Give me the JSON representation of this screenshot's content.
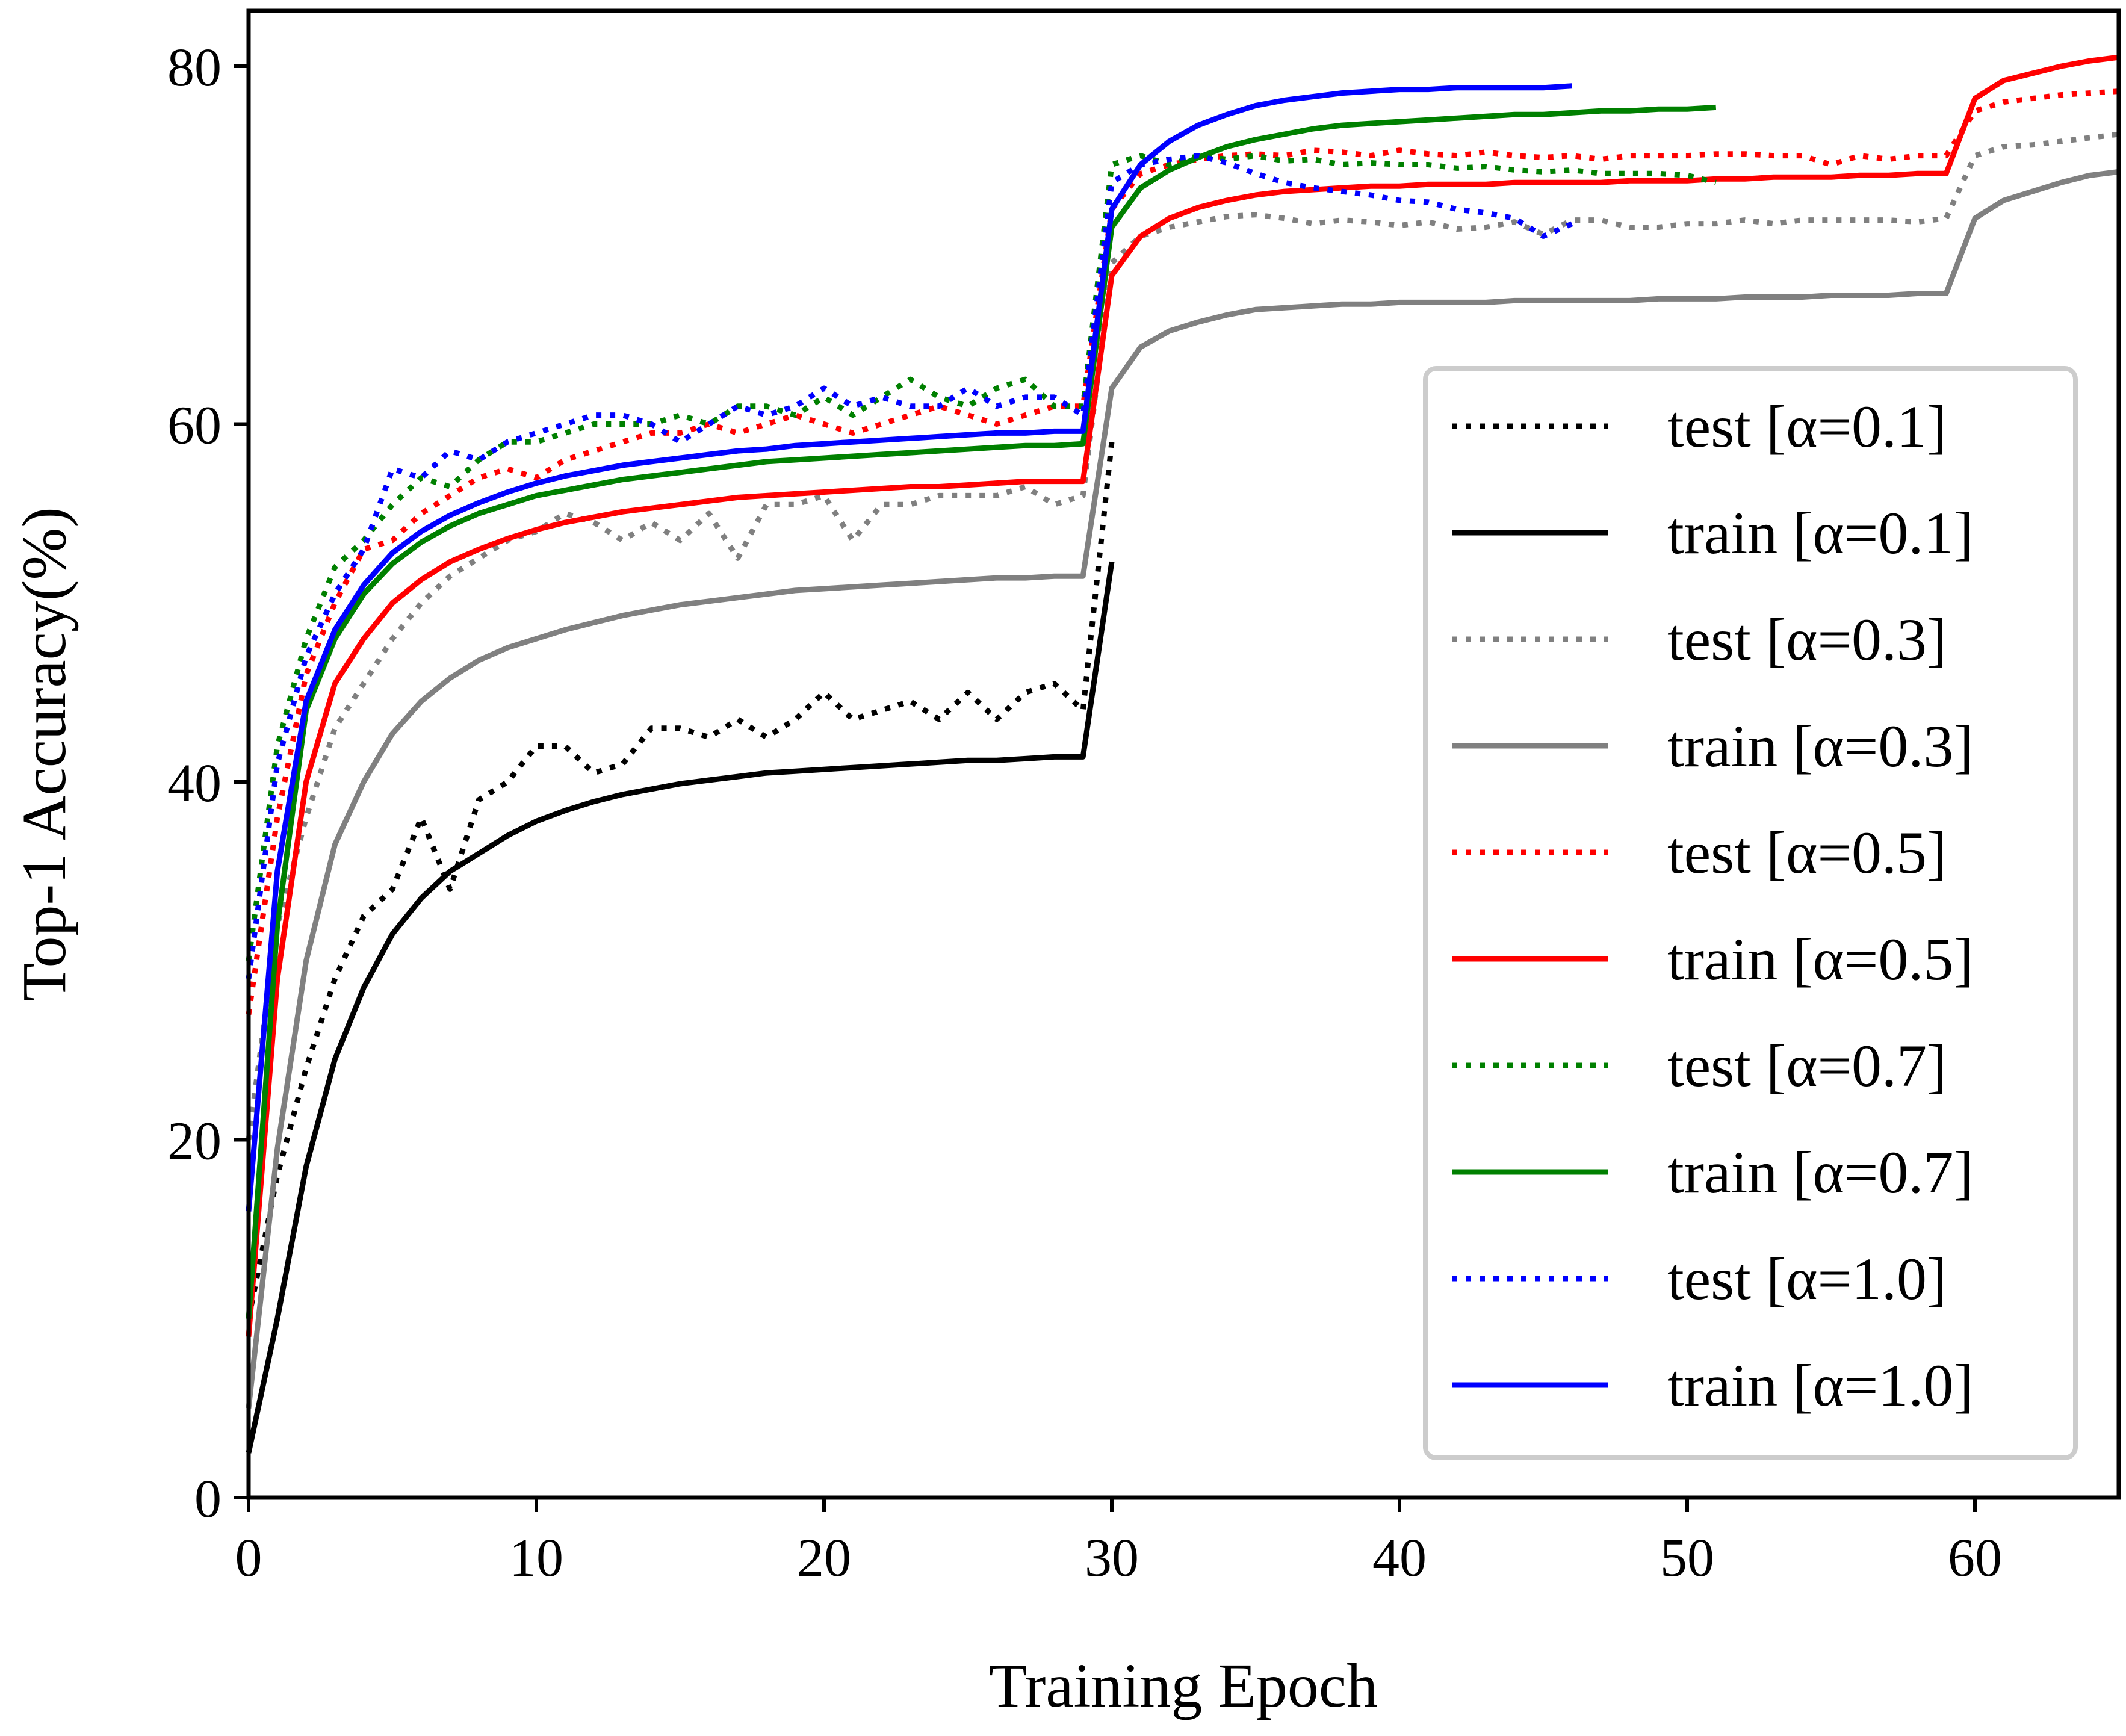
{
  "chart_data": {
    "type": "line",
    "title": "",
    "xlabel": "Training Epoch",
    "ylabel": "Top-1 Accuracy(%)",
    "xlim": [
      0,
      65
    ],
    "ylim": [
      0,
      83
    ],
    "xticks": [
      0,
      10,
      20,
      30,
      40,
      50,
      60
    ],
    "yticks": [
      0,
      20,
      40,
      60,
      80
    ],
    "grid": false,
    "legend_position": "right",
    "series": [
      {
        "name": "test [α=0.1]",
        "style": "dotted",
        "color": "#000000",
        "x": [
          0,
          1,
          2,
          3,
          4,
          5,
          6,
          7,
          8,
          9,
          10,
          11,
          12,
          13,
          14,
          15,
          16,
          17,
          18,
          19,
          20,
          21,
          22,
          23,
          24,
          25,
          26,
          27,
          28,
          29,
          30
        ],
        "y": [
          10,
          18,
          24,
          29,
          32.5,
          34,
          38,
          34,
          39,
          40,
          42,
          42,
          40.5,
          41,
          43,
          43,
          42.5,
          43.5,
          42.5,
          43.5,
          45,
          43.5,
          44,
          44.5,
          43.5,
          45,
          43.5,
          45,
          45.5,
          44,
          59
        ]
      },
      {
        "name": "train [α=0.1]",
        "style": "solid",
        "color": "#000000",
        "x": [
          0,
          1,
          2,
          3,
          4,
          5,
          6,
          7,
          8,
          9,
          10,
          11,
          12,
          13,
          14,
          15,
          16,
          17,
          18,
          19,
          20,
          21,
          22,
          23,
          24,
          25,
          26,
          27,
          28,
          29,
          30
        ],
        "y": [
          2.5,
          10,
          18.5,
          24.5,
          28.5,
          31.5,
          33.5,
          35,
          36,
          37,
          37.8,
          38.4,
          38.9,
          39.3,
          39.6,
          39.9,
          40.1,
          40.3,
          40.5,
          40.6,
          40.7,
          40.8,
          40.9,
          41,
          41.1,
          41.2,
          41.2,
          41.3,
          41.4,
          41.4,
          52.3
        ]
      },
      {
        "name": "test [α=0.3]",
        "style": "dotted",
        "color": "#808080",
        "x": [
          0,
          1,
          2,
          3,
          4,
          5,
          6,
          7,
          8,
          9,
          10,
          11,
          12,
          13,
          14,
          15,
          16,
          17,
          18,
          19,
          20,
          21,
          22,
          23,
          24,
          25,
          26,
          27,
          28,
          29,
          30,
          31,
          32,
          33,
          34,
          35,
          36,
          37,
          38,
          39,
          40,
          41,
          42,
          43,
          44,
          45,
          46,
          47,
          48,
          49,
          50,
          51,
          52,
          53,
          54,
          55,
          56,
          57,
          58,
          59,
          60,
          61,
          62,
          63,
          64,
          65
        ],
        "y": [
          20,
          32,
          38,
          43,
          45.5,
          48,
          50,
          51.5,
          52.5,
          53.5,
          54,
          55,
          54.5,
          53.5,
          54.5,
          53.5,
          55,
          52.5,
          55.5,
          55.5,
          56,
          53.5,
          55.5,
          55.5,
          56,
          56,
          56,
          56.5,
          55.5,
          56,
          69,
          70.5,
          71,
          71.3,
          71.6,
          71.7,
          71.5,
          71.2,
          71.4,
          71.3,
          71.1,
          71.3,
          70.9,
          71,
          71.3,
          70.6,
          71.4,
          71.4,
          71,
          71,
          71.2,
          71.2,
          71.4,
          71.2,
          71.4,
          71.4,
          71.4,
          71.4,
          71.3,
          71.5,
          75,
          75.5,
          75.6,
          75.8,
          76,
          76.2
        ]
      },
      {
        "name": "train [α=0.3]",
        "style": "solid",
        "color": "#808080",
        "x": [
          0,
          1,
          2,
          3,
          4,
          5,
          6,
          7,
          8,
          9,
          10,
          11,
          12,
          13,
          14,
          15,
          16,
          17,
          18,
          19,
          20,
          21,
          22,
          23,
          24,
          25,
          26,
          27,
          28,
          29,
          30,
          31,
          32,
          33,
          34,
          35,
          36,
          37,
          38,
          39,
          40,
          41,
          42,
          43,
          44,
          45,
          46,
          47,
          48,
          49,
          50,
          51,
          52,
          53,
          54,
          55,
          56,
          57,
          58,
          59,
          60,
          61,
          62,
          63,
          64,
          65
        ],
        "y": [
          5,
          19.5,
          30,
          36.5,
          40,
          42.7,
          44.5,
          45.8,
          46.8,
          47.5,
          48,
          48.5,
          48.9,
          49.3,
          49.6,
          49.9,
          50.1,
          50.3,
          50.5,
          50.7,
          50.8,
          50.9,
          51,
          51.1,
          51.2,
          51.3,
          51.4,
          51.4,
          51.5,
          51.5,
          62,
          64.3,
          65.2,
          65.7,
          66.1,
          66.4,
          66.5,
          66.6,
          66.7,
          66.7,
          66.8,
          66.8,
          66.8,
          66.8,
          66.9,
          66.9,
          66.9,
          66.9,
          66.9,
          67,
          67,
          67,
          67.1,
          67.1,
          67.1,
          67.2,
          67.2,
          67.2,
          67.3,
          67.3,
          71.5,
          72.5,
          73,
          73.5,
          73.9,
          74.1
        ]
      },
      {
        "name": "test [α=0.5]",
        "style": "dotted",
        "color": "#ff0000",
        "x": [
          0,
          1,
          2,
          3,
          4,
          5,
          6,
          7,
          8,
          9,
          10,
          11,
          12,
          13,
          14,
          15,
          16,
          17,
          18,
          19,
          20,
          21,
          22,
          23,
          24,
          25,
          26,
          27,
          28,
          29,
          30,
          31,
          32,
          33,
          34,
          35,
          36,
          37,
          38,
          39,
          40,
          41,
          42,
          43,
          44,
          45,
          46,
          47,
          48,
          49,
          50,
          51,
          52,
          53,
          54,
          55,
          56,
          57,
          58,
          59,
          60,
          61,
          62,
          63,
          64,
          65
        ],
        "y": [
          27,
          38,
          46,
          50,
          53,
          53.5,
          55,
          56,
          57,
          57.5,
          57,
          58,
          58.5,
          59,
          59.5,
          59.5,
          60,
          59.5,
          60,
          60.5,
          60,
          59.5,
          60,
          60.5,
          61,
          60.5,
          60,
          60.5,
          61,
          61,
          72,
          74,
          74.5,
          74.8,
          75,
          75.1,
          75,
          75.3,
          75.2,
          75,
          75.3,
          75.1,
          75,
          75.2,
          75,
          74.9,
          75,
          74.8,
          75,
          75,
          75,
          75.1,
          75.1,
          75,
          75,
          74.5,
          75,
          74.8,
          75,
          75,
          77.5,
          78,
          78.2,
          78.4,
          78.5,
          78.6
        ]
      },
      {
        "name": "train [α=0.5]",
        "style": "solid",
        "color": "#ff0000",
        "x": [
          0,
          1,
          2,
          3,
          4,
          5,
          6,
          7,
          8,
          9,
          10,
          11,
          12,
          13,
          14,
          15,
          16,
          17,
          18,
          19,
          20,
          21,
          22,
          23,
          24,
          25,
          26,
          27,
          28,
          29,
          30,
          31,
          32,
          33,
          34,
          35,
          36,
          37,
          38,
          39,
          40,
          41,
          42,
          43,
          44,
          45,
          46,
          47,
          48,
          49,
          50,
          51,
          52,
          53,
          54,
          55,
          56,
          57,
          58,
          59,
          60,
          61,
          62,
          63,
          64,
          65
        ],
        "y": [
          9,
          29,
          40,
          45.5,
          48,
          50,
          51.3,
          52.3,
          53,
          53.6,
          54.1,
          54.5,
          54.8,
          55.1,
          55.3,
          55.5,
          55.7,
          55.9,
          56,
          56.1,
          56.2,
          56.3,
          56.4,
          56.5,
          56.5,
          56.6,
          56.7,
          56.8,
          56.8,
          56.8,
          68.3,
          70.5,
          71.5,
          72.1,
          72.5,
          72.8,
          73,
          73.1,
          73.2,
          73.3,
          73.3,
          73.4,
          73.4,
          73.4,
          73.5,
          73.5,
          73.5,
          73.5,
          73.6,
          73.6,
          73.6,
          73.7,
          73.7,
          73.8,
          73.8,
          73.8,
          73.9,
          73.9,
          74,
          74,
          78.2,
          79.2,
          79.6,
          80,
          80.3,
          80.5
        ]
      },
      {
        "name": "test [α=0.7]",
        "style": "dotted",
        "color": "#008000",
        "x": [
          0,
          1,
          2,
          3,
          4,
          5,
          6,
          7,
          8,
          9,
          10,
          11,
          12,
          13,
          14,
          15,
          16,
          17,
          18,
          19,
          20,
          21,
          22,
          23,
          24,
          25,
          26,
          27,
          28,
          29,
          30,
          31,
          32,
          33,
          34,
          35,
          36,
          37,
          38,
          39,
          40,
          41,
          42,
          43,
          44,
          45,
          46,
          47,
          48,
          49,
          50,
          51
        ],
        "y": [
          30,
          42,
          48,
          52,
          53.5,
          55.5,
          57,
          56.5,
          58,
          59,
          59,
          59.5,
          60,
          60,
          60,
          60.5,
          60,
          61,
          61,
          60.5,
          61.5,
          60.5,
          61.5,
          62.5,
          61.5,
          61,
          62,
          62.5,
          61,
          61,
          74.5,
          75,
          74.5,
          75,
          74.8,
          75,
          74.7,
          74.8,
          74.5,
          74.6,
          74.5,
          74.5,
          74.3,
          74.4,
          74.2,
          74.1,
          74.2,
          74,
          74,
          74,
          73.9,
          73.5
        ]
      },
      {
        "name": "train [α=0.7]",
        "style": "solid",
        "color": "#008000",
        "x": [
          0,
          1,
          2,
          3,
          4,
          5,
          6,
          7,
          8,
          9,
          10,
          11,
          12,
          13,
          14,
          15,
          16,
          17,
          18,
          19,
          20,
          21,
          22,
          23,
          24,
          25,
          26,
          27,
          28,
          29,
          30,
          31,
          32,
          33,
          34,
          35,
          36,
          37,
          38,
          39,
          40,
          41,
          42,
          43,
          44,
          45,
          46,
          47,
          48,
          49,
          50,
          51
        ],
        "y": [
          10,
          32,
          44,
          48,
          50.5,
          52.2,
          53.4,
          54.3,
          55,
          55.5,
          56,
          56.3,
          56.6,
          56.9,
          57.1,
          57.3,
          57.5,
          57.7,
          57.9,
          58,
          58.1,
          58.2,
          58.3,
          58.4,
          58.5,
          58.6,
          58.7,
          58.8,
          58.8,
          58.9,
          71,
          73.2,
          74.2,
          74.9,
          75.5,
          75.9,
          76.2,
          76.5,
          76.7,
          76.8,
          76.9,
          77,
          77.1,
          77.2,
          77.3,
          77.3,
          77.4,
          77.5,
          77.5,
          77.6,
          77.6,
          77.7
        ]
      },
      {
        "name": "test [α=1.0]",
        "style": "dotted",
        "color": "#0000ff",
        "x": [
          0,
          1,
          2,
          3,
          4,
          5,
          6,
          7,
          8,
          9,
          10,
          11,
          12,
          13,
          14,
          15,
          16,
          17,
          18,
          19,
          20,
          21,
          22,
          23,
          24,
          25,
          26,
          27,
          28,
          29,
          30,
          31,
          32,
          33,
          34,
          35,
          36,
          37,
          38,
          39,
          40,
          41,
          42,
          43,
          44,
          45,
          46
        ],
        "y": [
          29,
          41,
          47,
          50.5,
          53,
          57.5,
          57,
          58.5,
          58,
          59,
          59.5,
          60,
          60.5,
          60.5,
          60,
          59,
          60,
          61,
          60.5,
          61,
          62,
          61,
          61.5,
          61,
          61,
          62,
          61,
          61.5,
          61.5,
          60.5,
          73.5,
          74.5,
          74.8,
          75,
          74.6,
          74,
          73.5,
          73.2,
          73,
          72.8,
          72.5,
          72.4,
          72,
          71.8,
          71.5,
          70.5,
          71.2
        ]
      },
      {
        "name": "train [α=1.0]",
        "style": "solid",
        "color": "#0000ff",
        "x": [
          0,
          1,
          2,
          3,
          4,
          5,
          6,
          7,
          8,
          9,
          10,
          11,
          12,
          13,
          14,
          15,
          16,
          17,
          18,
          19,
          20,
          21,
          22,
          23,
          24,
          25,
          26,
          27,
          28,
          29,
          30,
          31,
          32,
          33,
          34,
          35,
          36,
          37,
          38,
          39,
          40,
          41,
          42,
          43,
          44,
          45,
          46
        ],
        "y": [
          16,
          35,
          44.5,
          48.5,
          51,
          52.8,
          54,
          54.9,
          55.6,
          56.2,
          56.7,
          57.1,
          57.4,
          57.7,
          57.9,
          58.1,
          58.3,
          58.5,
          58.6,
          58.8,
          58.9,
          59,
          59.1,
          59.2,
          59.3,
          59.4,
          59.5,
          59.5,
          59.6,
          59.6,
          72,
          74.5,
          75.8,
          76.7,
          77.3,
          77.8,
          78.1,
          78.3,
          78.5,
          78.6,
          78.7,
          78.7,
          78.8,
          78.8,
          78.8,
          78.8,
          78.9
        ]
      }
    ]
  }
}
